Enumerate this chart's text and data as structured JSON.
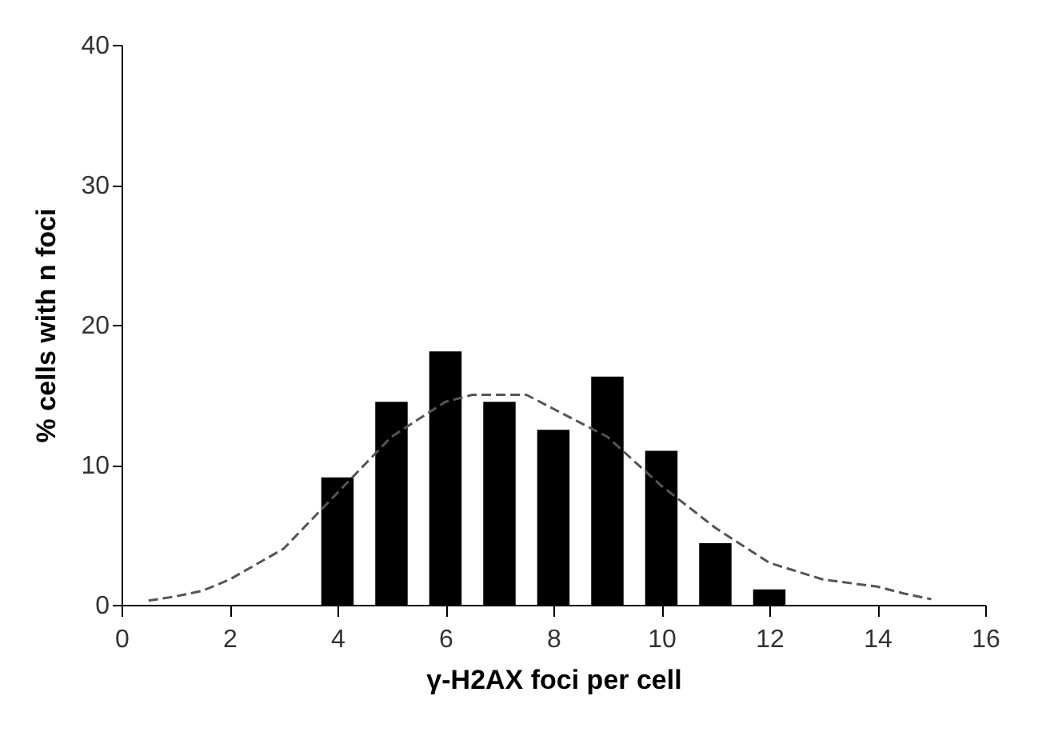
{
  "chart_data": {
    "type": "bar",
    "xlabel": "γ-H2AX foci per cell",
    "ylabel": "% cells with n foci",
    "series": [
      {
        "color": "#000000",
        "x": [
          4,
          5,
          6,
          7,
          8,
          9,
          10,
          11,
          12
        ],
        "values": [
          9.1,
          14.5,
          18.1,
          14.5,
          12.5,
          16.3,
          11,
          4.4,
          1.1
        ]
      },
      {
        "type": "line",
        "color": "#555555",
        "line_style": "dashed",
        "x": [
          0.5,
          1,
          1.5,
          2,
          3,
          4,
          5,
          6,
          6.5,
          7,
          7.5,
          8,
          9,
          10,
          11,
          12,
          13,
          14,
          14.5,
          15
        ],
        "values": [
          0.3,
          0.6,
          1,
          1.8,
          4,
          8,
          12,
          14.5,
          15,
          15,
          15,
          14,
          12,
          8.5,
          5.5,
          3,
          1.8,
          1.3,
          0.8,
          0.4
        ]
      }
    ],
    "xlim": [
      0,
      16
    ],
    "ylim": [
      0,
      40
    ],
    "xticks": [
      0,
      2,
      4,
      6,
      8,
      10,
      12,
      14,
      16
    ],
    "yticks": [
      0,
      10,
      20,
      30,
      40
    ],
    "grid": false
  }
}
